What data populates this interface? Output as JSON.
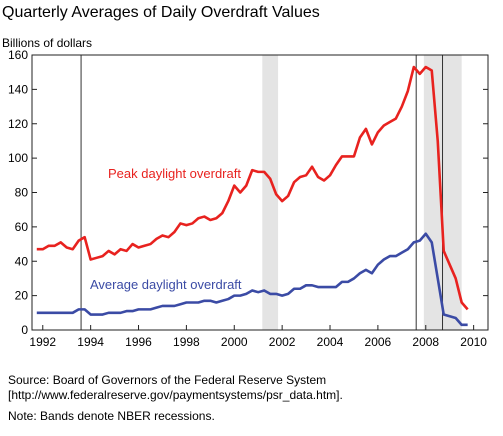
{
  "chart_data": {
    "type": "line",
    "title": "Quarterly Averages of Daily Overdraft Values",
    "y_axis_label": "Billions of dollars",
    "x": [
      1991.75,
      1992,
      1992.25,
      1992.5,
      1992.75,
      1993,
      1993.25,
      1993.5,
      1993.75,
      1994,
      1994.25,
      1994.5,
      1994.75,
      1995,
      1995.25,
      1995.5,
      1995.75,
      1996,
      1996.25,
      1996.5,
      1996.75,
      1997,
      1997.25,
      1997.5,
      1997.75,
      1998,
      1998.25,
      1998.5,
      1998.75,
      1999,
      1999.25,
      1999.5,
      1999.75,
      2000,
      2000.25,
      2000.5,
      2000.75,
      2001,
      2001.25,
      2001.5,
      2001.75,
      2002,
      2002.25,
      2002.5,
      2002.75,
      2003,
      2003.25,
      2003.5,
      2003.75,
      2004,
      2004.25,
      2004.5,
      2004.75,
      2005,
      2005.25,
      2005.5,
      2005.75,
      2006,
      2006.25,
      2006.5,
      2006.75,
      2007,
      2007.25,
      2007.5,
      2007.75,
      2008,
      2008.25,
      2008.5,
      2008.75,
      2009,
      2009.25,
      2009.5,
      2009.75
    ],
    "series": [
      {
        "name": "Peak daylight overdraft",
        "color": "#e8221f",
        "values": [
          47,
          47,
          49,
          49,
          51,
          48,
          47,
          52,
          54,
          41,
          42,
          43,
          46,
          44,
          47,
          46,
          50,
          48,
          49,
          50,
          53,
          55,
          54,
          57,
          62,
          61,
          62,
          65,
          66,
          64,
          65,
          68,
          75,
          84,
          80,
          84,
          93,
          92,
          92,
          88,
          79,
          75,
          78,
          86,
          89,
          90,
          95,
          89,
          87,
          90,
          96,
          101,
          101,
          101,
          112,
          117,
          108,
          115,
          119,
          121,
          123,
          130,
          139,
          153,
          149,
          153,
          151,
          110,
          46,
          38,
          30,
          16,
          12
        ]
      },
      {
        "name": "Average daylight overdraft",
        "color": "#3b4ba5",
        "values": [
          10,
          10,
          10,
          10,
          10,
          10,
          10,
          12,
          12,
          9,
          9,
          9,
          10,
          10,
          10,
          11,
          11,
          12,
          12,
          12,
          13,
          14,
          14,
          14,
          15,
          16,
          16,
          16,
          17,
          17,
          16,
          17,
          18,
          20,
          20,
          21,
          23,
          22,
          23,
          21,
          21,
          20,
          21,
          24,
          24,
          26,
          26,
          25,
          25,
          25,
          25,
          28,
          28,
          30,
          33,
          35,
          33,
          38,
          41,
          43,
          43,
          45,
          47,
          51,
          52,
          56,
          51,
          30,
          9,
          8,
          7,
          3,
          3
        ]
      }
    ],
    "recession_bands": [
      [
        2001.17,
        2001.83
      ],
      [
        2007.92,
        2009.5
      ]
    ],
    "vertical_lines": [
      1993.6,
      2007.6,
      2008.7
    ],
    "xlim": [
      1991.55,
      2010.6
    ],
    "xticks": [
      1992,
      1994,
      1996,
      1998,
      2000,
      2002,
      2004,
      2006,
      2008,
      2010
    ],
    "ylim": [
      0,
      160
    ],
    "yticks": [
      0,
      20,
      40,
      60,
      80,
      100,
      120,
      140,
      160
    ],
    "source": "Source: Board of Governors of the Federal Reserve System",
    "source_url": "[http://www.federalreserve.gov/paymentsystems/psr_data.htm].",
    "note": "Note: Bands denote NBER recessions."
  }
}
